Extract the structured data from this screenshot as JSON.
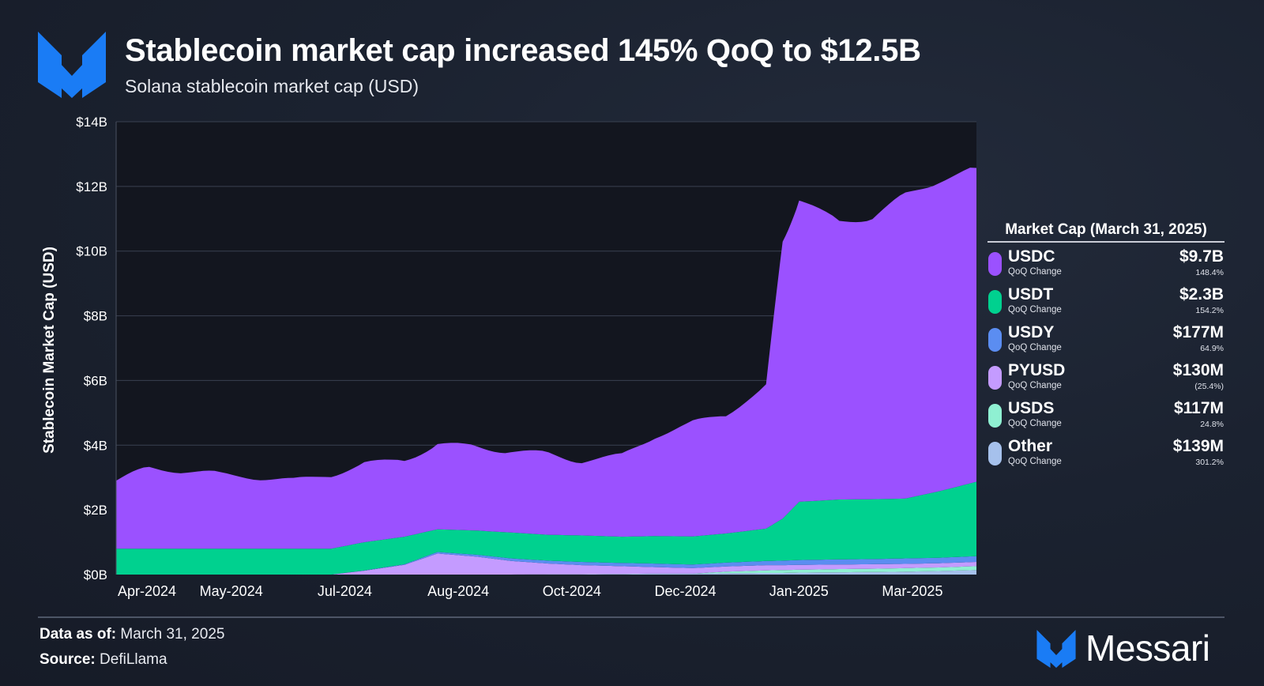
{
  "header": {
    "title": "Stablecoin market cap increased 145% QoQ to $12.5B",
    "subtitle": "Solana stablecoin market cap (USD)"
  },
  "legend": {
    "title": "Market Cap (March 31, 2025)",
    "change_label": "QoQ Change",
    "items": [
      {
        "name": "USDC",
        "value": "$9.7B",
        "change": "148.4%",
        "color": "#9b51ff"
      },
      {
        "name": "USDT",
        "value": "$2.3B",
        "change": "154.2%",
        "color": "#00d18f"
      },
      {
        "name": "USDY",
        "value": "$177M",
        "change": "64.9%",
        "color": "#5b8df1"
      },
      {
        "name": "PYUSD",
        "value": "$130M",
        "change": "(25.4%)",
        "color": "#c49bff"
      },
      {
        "name": "USDS",
        "value": "$117M",
        "change": "24.8%",
        "color": "#8ff0d2"
      },
      {
        "name": "Other",
        "value": "$139M",
        "change": "301.2%",
        "color": "#a6c1ec"
      }
    ]
  },
  "footer": {
    "data_as_of_label": "Data as of:",
    "data_as_of_value": "March 31, 2025",
    "source_label": "Source:",
    "source_value": "DefiLlama",
    "brand": "Messari"
  },
  "chart_data": {
    "type": "area",
    "stacked": true,
    "ylabel": "Stablecoin Market Cap (USD)",
    "xlabel": "",
    "ylim": [
      0,
      14
    ],
    "y_unit": "$B",
    "y_ticks": [
      "$0B",
      "$2B",
      "$4B",
      "$6B",
      "$8B",
      "$10B",
      "$12B",
      "$14B"
    ],
    "x_ticks": [
      "Apr-2024",
      "May-2024",
      "Jul-2024",
      "Aug-2024",
      "Oct-2024",
      "Dec-2024",
      "Jan-2025",
      "Mar-2025"
    ],
    "x": [
      "2024-04-01",
      "2024-04-15",
      "2024-05-01",
      "2024-05-15",
      "2024-06-01",
      "2024-06-15",
      "2024-07-01",
      "2024-07-15",
      "2024-08-01",
      "2024-08-15",
      "2024-09-01",
      "2024-09-15",
      "2024-10-01",
      "2024-10-15",
      "2024-11-01",
      "2024-11-15",
      "2024-12-01",
      "2024-12-15",
      "2025-01-01",
      "2025-01-08",
      "2025-01-15",
      "2025-02-01",
      "2025-02-15",
      "2025-03-01",
      "2025-03-15",
      "2025-03-31"
    ],
    "series": [
      {
        "name": "Other",
        "color": "#a6c1ec",
        "values": [
          0.0,
          0.0,
          0.0,
          0.0,
          0.0,
          0.0,
          0.0,
          0.0,
          0.0,
          0.0,
          0.0,
          0.0,
          0.01,
          0.01,
          0.02,
          0.03,
          0.03,
          0.04,
          0.05,
          0.05,
          0.06,
          0.07,
          0.08,
          0.09,
          0.11,
          0.14
        ]
      },
      {
        "name": "USDS",
        "color": "#8ff0d2",
        "values": [
          0.0,
          0.0,
          0.0,
          0.0,
          0.0,
          0.0,
          0.0,
          0.0,
          0.0,
          0.0,
          0.0,
          0.0,
          0.0,
          0.0,
          0.0,
          0.0,
          0.0,
          0.05,
          0.08,
          0.09,
          0.09,
          0.1,
          0.1,
          0.11,
          0.11,
          0.12
        ]
      },
      {
        "name": "PYUSD",
        "color": "#c49bff",
        "values": [
          0.0,
          0.0,
          0.0,
          0.0,
          0.0,
          0.0,
          0.0,
          0.12,
          0.3,
          0.65,
          0.55,
          0.42,
          0.33,
          0.28,
          0.24,
          0.2,
          0.17,
          0.16,
          0.16,
          0.15,
          0.15,
          0.14,
          0.14,
          0.13,
          0.13,
          0.13
        ]
      },
      {
        "name": "USDY",
        "color": "#5b8df1",
        "values": [
          0.0,
          0.0,
          0.0,
          0.0,
          0.0,
          0.0,
          0.0,
          0.01,
          0.02,
          0.05,
          0.06,
          0.08,
          0.09,
          0.1,
          0.1,
          0.11,
          0.11,
          0.12,
          0.13,
          0.14,
          0.15,
          0.16,
          0.16,
          0.17,
          0.17,
          0.18
        ]
      },
      {
        "name": "USDT",
        "color": "#00d18f",
        "values": [
          0.8,
          0.8,
          0.8,
          0.8,
          0.8,
          0.8,
          0.8,
          0.87,
          0.85,
          0.7,
          0.75,
          0.8,
          0.8,
          0.82,
          0.81,
          0.85,
          0.87,
          0.9,
          1.0,
          1.3,
          1.8,
          1.85,
          1.85,
          1.85,
          2.05,
          2.3
        ]
      },
      {
        "name": "USDC",
        "color": "#9b51ff",
        "values": [
          2.1,
          2.5,
          2.4,
          2.3,
          2.2,
          2.1,
          2.3,
          2.4,
          2.4,
          2.6,
          2.6,
          2.5,
          2.5,
          2.3,
          2.5,
          3.1,
          3.5,
          3.7,
          4.4,
          8.6,
          9.3,
          8.6,
          8.7,
          9.4,
          9.6,
          9.7
        ]
      }
    ]
  }
}
